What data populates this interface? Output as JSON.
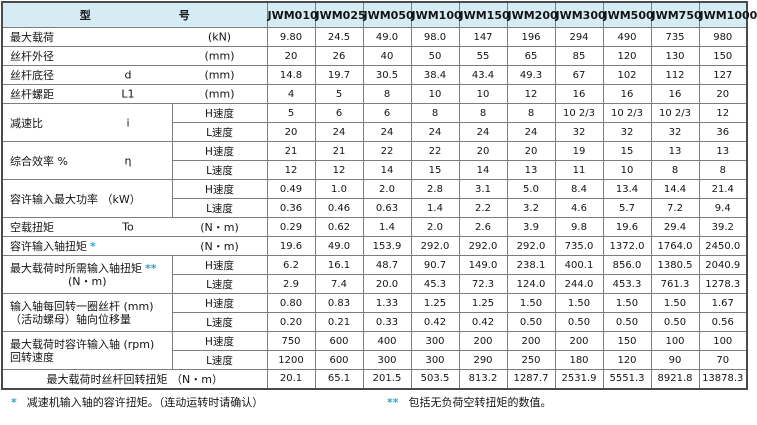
{
  "colors": {
    "header_bg": "#d5ecf4",
    "border": "#7d7d7d",
    "outer_border": "#4a4a4a",
    "accent": "#2aa7cc",
    "text": "#141414"
  },
  "table": {
    "model_header": {
      "left": "型",
      "right": "号"
    },
    "models": [
      "JWM010",
      "JWM025",
      "JWM050",
      "JWM100",
      "JWM150",
      "JWM200",
      "JWM300",
      "JWM500",
      "JWM750",
      "JWM1000"
    ],
    "speed_labels": {
      "h": "H速度",
      "l": "L速度"
    },
    "rows": [
      {
        "mode": "simple",
        "label": "最大载荷",
        "sym": "",
        "unit": "(kN)",
        "values": [
          "9.80",
          "24.5",
          "49.0",
          "98.0",
          "147",
          "196",
          "294",
          "490",
          "735",
          "980"
        ]
      },
      {
        "mode": "simple",
        "label": "丝杆外径",
        "sym": "",
        "unit": "(mm)",
        "values": [
          "20",
          "26",
          "40",
          "50",
          "55",
          "65",
          "85",
          "120",
          "130",
          "150"
        ]
      },
      {
        "mode": "simple",
        "label": "丝杆底径",
        "sym": "d",
        "unit": "(mm)",
        "values": [
          "14.8",
          "19.7",
          "30.5",
          "38.4",
          "43.4",
          "49.3",
          "67",
          "102",
          "112",
          "127"
        ]
      },
      {
        "mode": "simple",
        "label": "丝杆螺距",
        "sym": "L1",
        "unit": "(mm)",
        "values": [
          "4",
          "5",
          "8",
          "10",
          "10",
          "12",
          "16",
          "16",
          "16",
          "20"
        ]
      },
      {
        "mode": "hl",
        "label": "减速比",
        "sym": "i",
        "h": [
          "5",
          "6",
          "6",
          "8",
          "8",
          "8",
          "10 2/3",
          "10 2/3",
          "10 2/3",
          "12"
        ],
        "l": [
          "20",
          "24",
          "24",
          "24",
          "24",
          "24",
          "32",
          "32",
          "32",
          "36"
        ]
      },
      {
        "mode": "hl",
        "label": "综合效率 %",
        "sym": "η",
        "h": [
          "21",
          "21",
          "22",
          "22",
          "20",
          "20",
          "19",
          "15",
          "13",
          "13"
        ],
        "l": [
          "12",
          "12",
          "14",
          "15",
          "14",
          "13",
          "11",
          "10",
          "8",
          "8"
        ]
      },
      {
        "mode": "hl",
        "label": "容许输入最大功率 （kW）",
        "sym": "",
        "h": [
          "0.49",
          "1.0",
          "2.0",
          "2.8",
          "3.1",
          "5.0",
          "8.4",
          "13.4",
          "14.4",
          "21.4"
        ],
        "l": [
          "0.36",
          "0.46",
          "0.63",
          "1.4",
          "2.2",
          "3.2",
          "4.6",
          "5.7",
          "7.2",
          "9.4"
        ]
      },
      {
        "mode": "simple",
        "label": "空载扭矩",
        "sym": "To",
        "unit": "(N・m)",
        "values": [
          "0.29",
          "0.62",
          "1.4",
          "2.0",
          "2.6",
          "3.9",
          "9.8",
          "19.6",
          "29.4",
          "39.2"
        ]
      },
      {
        "mode": "simple",
        "label": "容许输入轴扭矩",
        "star": "*",
        "sym": "",
        "unit": "(N・m)",
        "values": [
          "19.6",
          "49.0",
          "153.9",
          "292.0",
          "292.0",
          "292.0",
          "735.0",
          "1372.0",
          "1764.0",
          "2450.0"
        ]
      },
      {
        "mode": "hl",
        "lines": [
          "最大载荷时所需输入轴扭矩",
          "(N・m)"
        ],
        "star": "**",
        "line2_center": true,
        "h": [
          "6.2",
          "16.1",
          "48.7",
          "90.7",
          "149.0",
          "238.1",
          "400.1",
          "856.0",
          "1380.5",
          "2040.9"
        ],
        "l": [
          "2.9",
          "7.4",
          "20.0",
          "45.3",
          "72.3",
          "124.0",
          "244.0",
          "453.3",
          "761.3",
          "1278.3"
        ]
      },
      {
        "mode": "hl",
        "lines": [
          "输入轴每回转一圈丝杆 (mm)",
          "（活动螺母）轴向位移量"
        ],
        "h": [
          "0.80",
          "0.83",
          "1.33",
          "1.25",
          "1.25",
          "1.50",
          "1.50",
          "1.50",
          "1.50",
          "1.67"
        ],
        "l": [
          "0.20",
          "0.21",
          "0.33",
          "0.42",
          "0.42",
          "0.50",
          "0.50",
          "0.50",
          "0.50",
          "0.56"
        ]
      },
      {
        "mode": "hl",
        "lines": [
          "最大载荷时容许输入轴 (rpm)",
          "回转速度"
        ],
        "h": [
          "750",
          "600",
          "400",
          "300",
          "200",
          "200",
          "200",
          "150",
          "100",
          "100"
        ],
        "l": [
          "1200",
          "600",
          "300",
          "300",
          "290",
          "250",
          "180",
          "120",
          "90",
          "70"
        ]
      },
      {
        "mode": "full",
        "label": "最大载荷时丝杆回转扭矩 （N・m）",
        "values": [
          "20.1",
          "65.1",
          "201.5",
          "503.5",
          "813.2",
          "1287.7",
          "2531.9",
          "5551.3",
          "8921.8",
          "13878.3"
        ]
      }
    ]
  },
  "footnotes": [
    {
      "marker": "*",
      "text": "减速机输入轴的容许扭矩。（连动运转时请确认）"
    },
    {
      "marker": "**",
      "text": "包括无负荷空转扭矩的数值。"
    }
  ]
}
